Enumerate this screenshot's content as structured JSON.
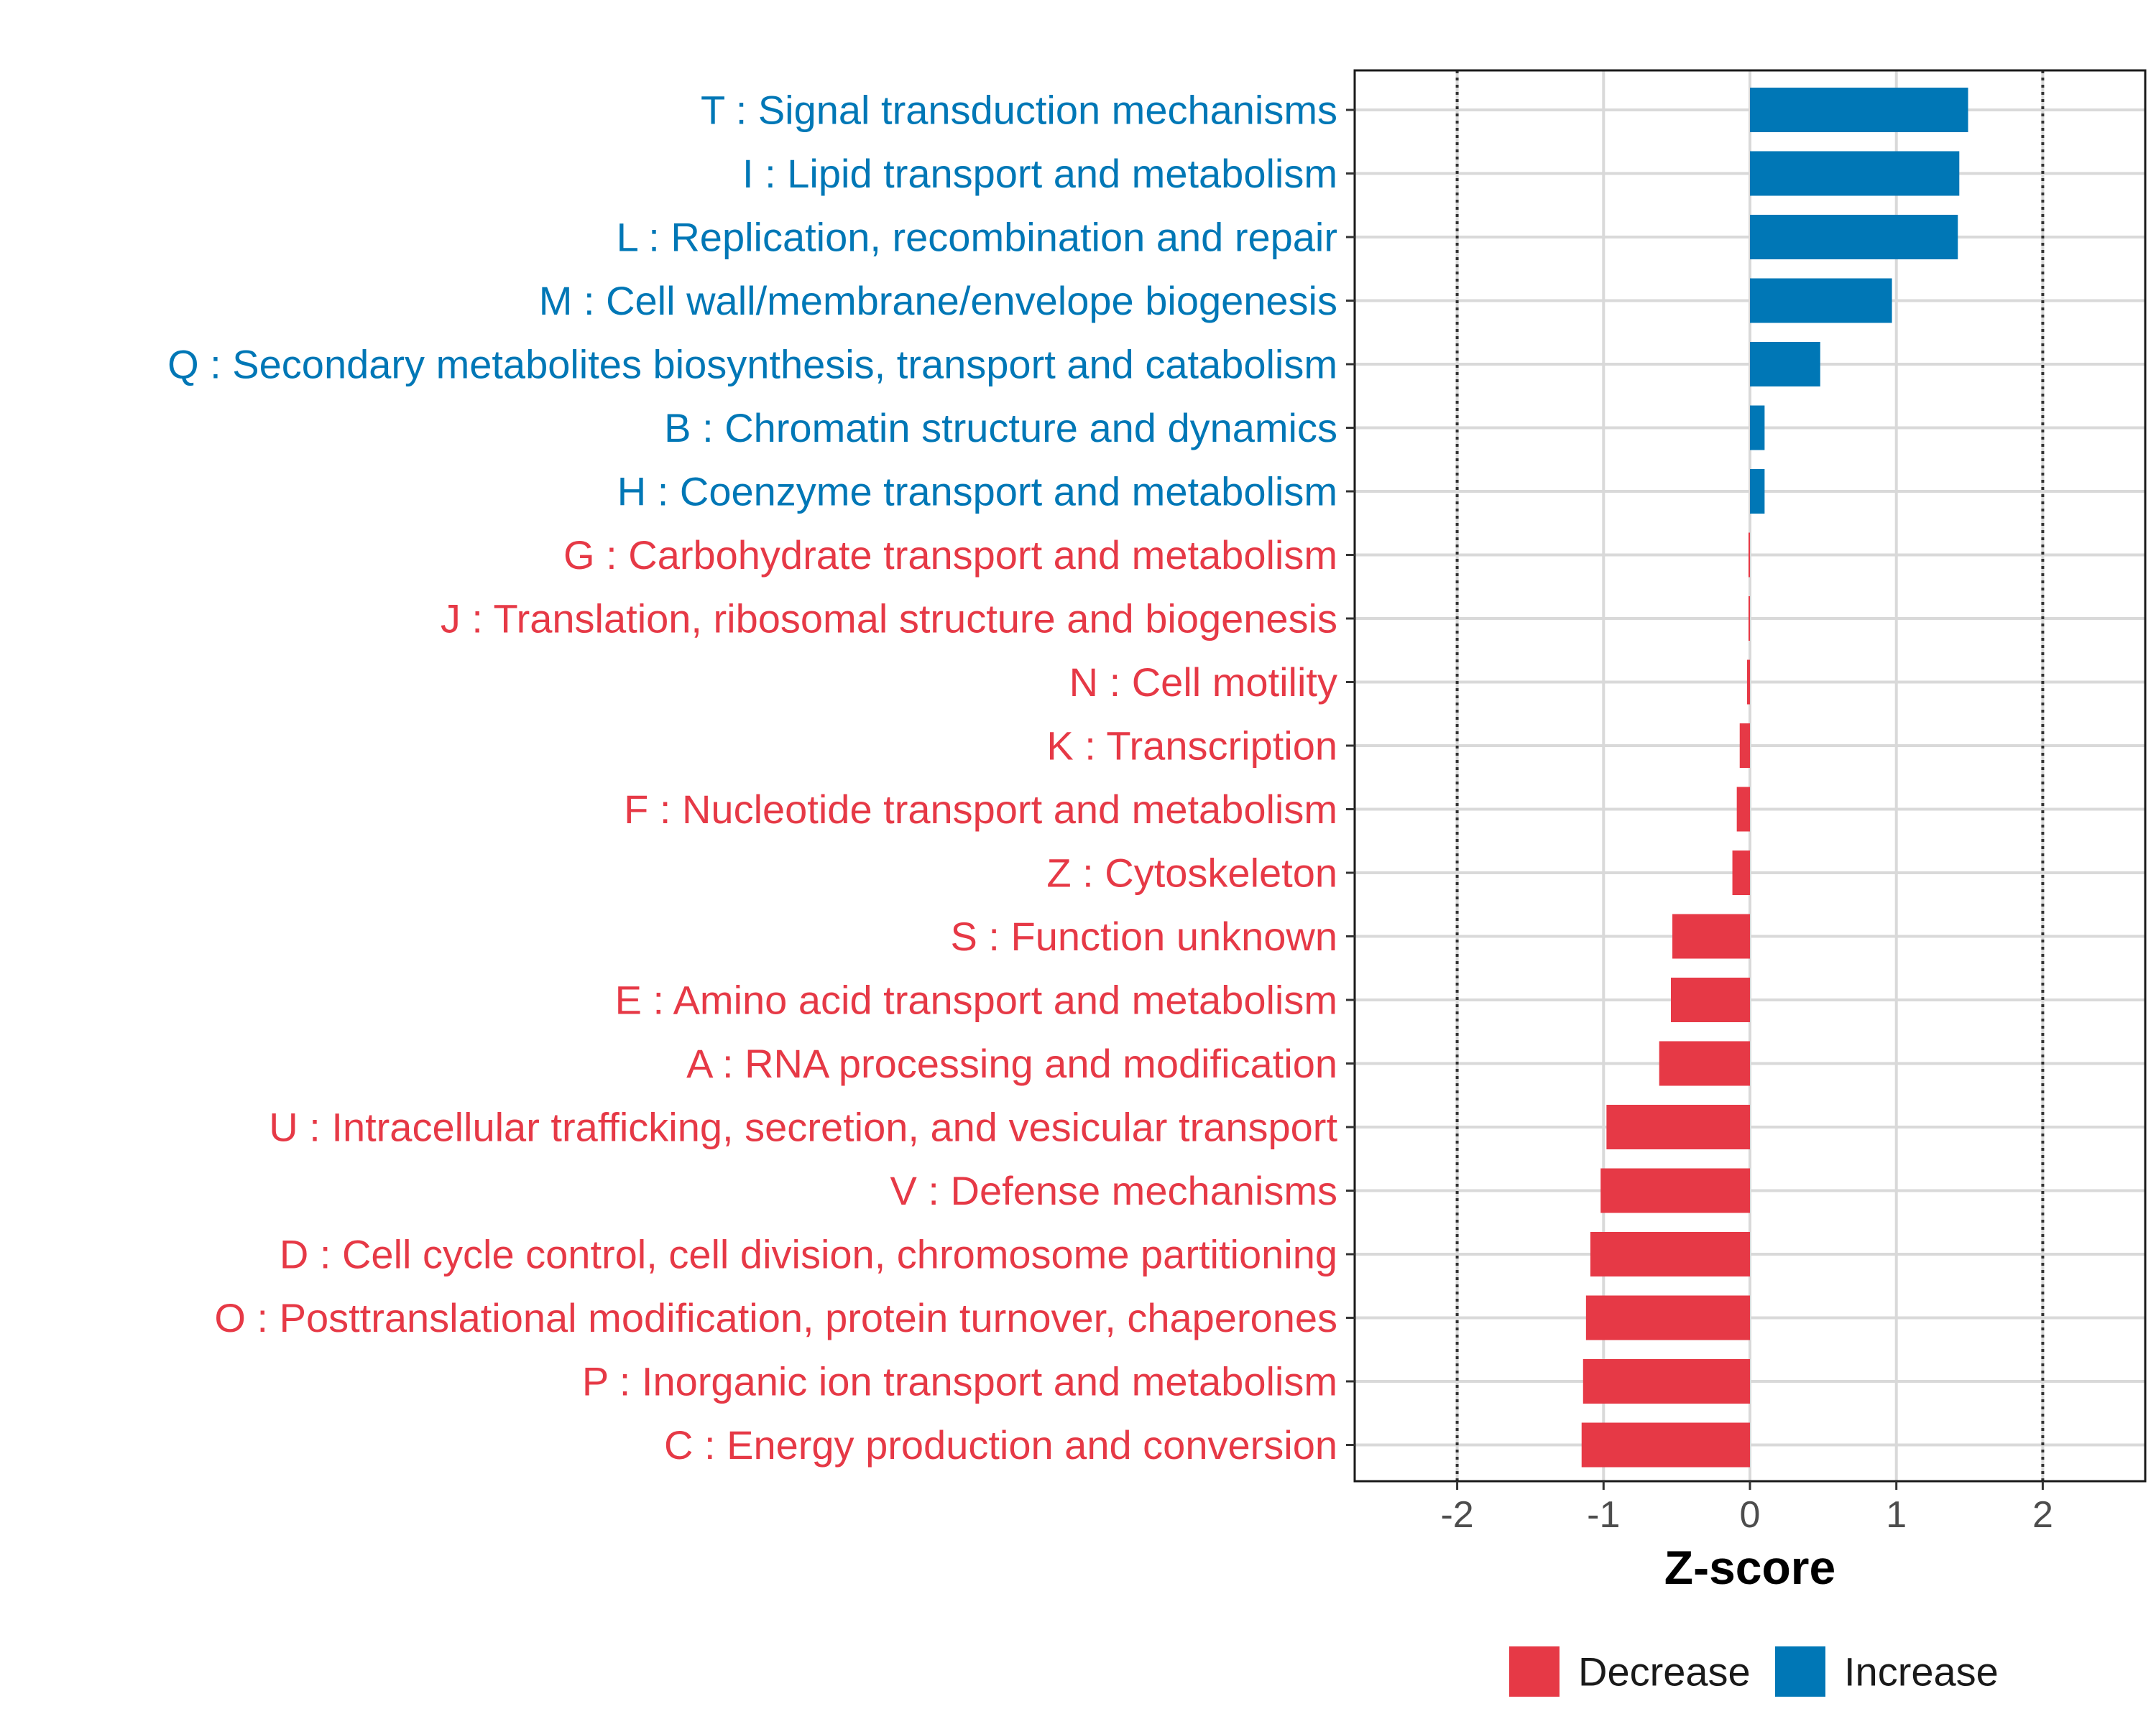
{
  "chart_data": {
    "type": "bar",
    "orientation": "horizontal",
    "title": "",
    "xlabel": "Z-score",
    "ylabel": "",
    "xlim": [
      -2.7,
      2.7
    ],
    "x_ticks": [
      -2,
      -1,
      0,
      1,
      2
    ],
    "x_tick_labels": [
      "-2",
      "-1",
      "0",
      "1",
      "2"
    ],
    "reference_lines": [
      -2,
      2
    ],
    "grid": true,
    "legend_position": "bottom",
    "legend": [
      {
        "name": "Decrease",
        "color": "#E63946"
      },
      {
        "name": "Increase",
        "color": "#0077B6"
      }
    ],
    "categories": [
      "T : Signal transduction mechanisms",
      "I : Lipid transport and metabolism",
      "L : Replication, recombination and repair",
      "M : Cell wall/membrane/envelope biogenesis",
      "Q : Secondary metabolites biosynthesis, transport and catabolism",
      "B : Chromatin structure and dynamics",
      "H : Coenzyme transport and metabolism",
      "G : Carbohydrate transport and metabolism",
      "J : Translation, ribosomal structure and biogenesis",
      "N : Cell motility",
      "K : Transcription",
      "F : Nucleotide transport and metabolism",
      "Z : Cytoskeleton",
      "S : Function unknown",
      "E : Amino acid transport and metabolism",
      "A : RNA processing and modification",
      "U : Intracellular trafficking, secretion, and vesicular transport",
      "V : Defense mechanisms",
      "D : Cell cycle control, cell division, chromosome partitioning",
      "O : Posttranslational modification, protein turnover, chaperones",
      "P : Inorganic ion transport and metabolism",
      "C : Energy production and conversion"
    ],
    "values": [
      1.49,
      1.43,
      1.42,
      0.97,
      0.48,
      0.1,
      0.1,
      -0.01,
      -0.01,
      -0.02,
      -0.07,
      -0.09,
      -0.12,
      -0.53,
      -0.54,
      -0.62,
      -0.98,
      -1.02,
      -1.09,
      -1.12,
      -1.14,
      -1.15
    ],
    "groups": [
      "Increase",
      "Increase",
      "Increase",
      "Increase",
      "Increase",
      "Increase",
      "Increase",
      "Decrease",
      "Decrease",
      "Decrease",
      "Decrease",
      "Decrease",
      "Decrease",
      "Decrease",
      "Decrease",
      "Decrease",
      "Decrease",
      "Decrease",
      "Decrease",
      "Decrease",
      "Decrease",
      "Decrease"
    ],
    "colors": {
      "Increase": "#0077B6",
      "Decrease": "#E63946"
    }
  }
}
